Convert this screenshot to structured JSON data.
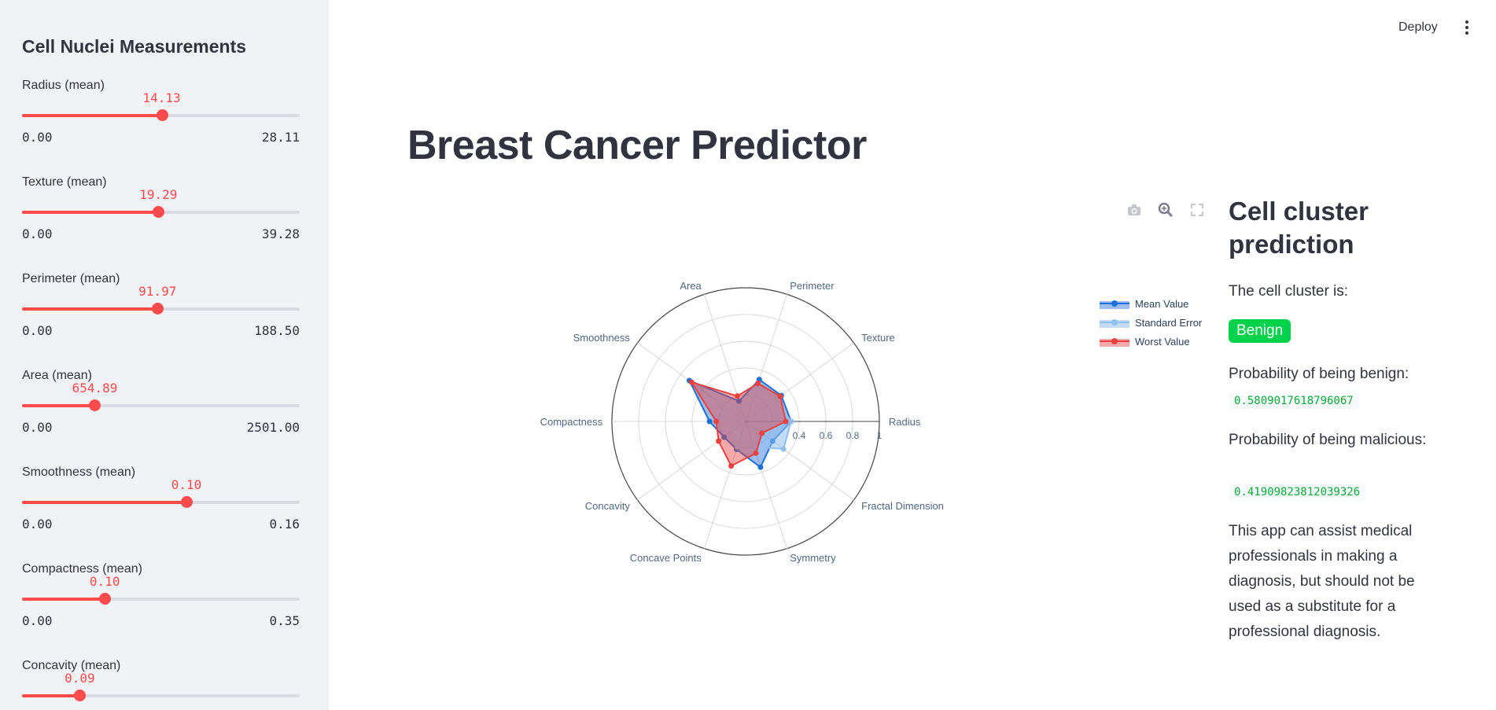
{
  "sidebar": {
    "title": "Cell Nuclei Measurements",
    "sliders": [
      {
        "label": "Radius (mean)",
        "value": "14.13",
        "min": "0.00",
        "max": "28.11",
        "fraction": 0.503
      },
      {
        "label": "Texture (mean)",
        "value": "19.29",
        "min": "0.00",
        "max": "39.28",
        "fraction": 0.491
      },
      {
        "label": "Perimeter (mean)",
        "value": "91.97",
        "min": "0.00",
        "max": "188.50",
        "fraction": 0.488
      },
      {
        "label": "Area (mean)",
        "value": "654.89",
        "min": "0.00",
        "max": "2501.00",
        "fraction": 0.262
      },
      {
        "label": "Smoothness (mean)",
        "value": "0.10",
        "min": "0.00",
        "max": "0.16",
        "fraction": 0.592
      },
      {
        "label": "Compactness (mean)",
        "value": "0.10",
        "min": "0.00",
        "max": "0.35",
        "fraction": 0.298
      },
      {
        "label": "Concavity (mean)",
        "value": "0.09",
        "min": "0.00",
        "max": "",
        "fraction": 0.208
      }
    ]
  },
  "header": {
    "deploy_label": "Deploy"
  },
  "main": {
    "title": "Breast Cancer Predictor"
  },
  "chart_data": {
    "type": "radar",
    "categories": [
      "Radius",
      "Texture",
      "Perimeter",
      "Area",
      "Smoothness",
      "Compactness",
      "Concavity",
      "Concave Points",
      "Symmetry",
      "Fractal Dimension"
    ],
    "radial_ticks": [
      "0.4",
      "0.6",
      "0.8",
      "1"
    ],
    "radial_range": [
      0,
      1
    ],
    "series": [
      {
        "name": "Mean Value",
        "color": "#1f6fd6",
        "values": [
          0.34,
          0.33,
          0.33,
          0.16,
          0.52,
          0.27,
          0.2,
          0.22,
          0.36,
          0.25
        ]
      },
      {
        "name": "Standard Error",
        "color": "#8fbff0",
        "values": [
          0.34,
          0.28,
          0.28,
          0.11,
          0.25,
          0.17,
          0.1,
          0.2,
          0.2,
          0.35
        ]
      },
      {
        "name": "Worst Value",
        "color": "#e8413f",
        "values": [
          0.3,
          0.32,
          0.3,
          0.2,
          0.5,
          0.22,
          0.25,
          0.35,
          0.25,
          0.15
        ]
      }
    ]
  },
  "prediction": {
    "title": "Cell cluster prediction",
    "subtitle": "The cell cluster is:",
    "result": "Benign",
    "benign_label": "Probability of being benign:",
    "benign_value": "0.5809017618796067",
    "malicious_label": "Probability of being malicious:",
    "malicious_value": "0.41909823812039326",
    "disclaimer": "This app can assist medical professionals in making a diagnosis, but should not be used as a substitute for a professional diagnosis."
  }
}
